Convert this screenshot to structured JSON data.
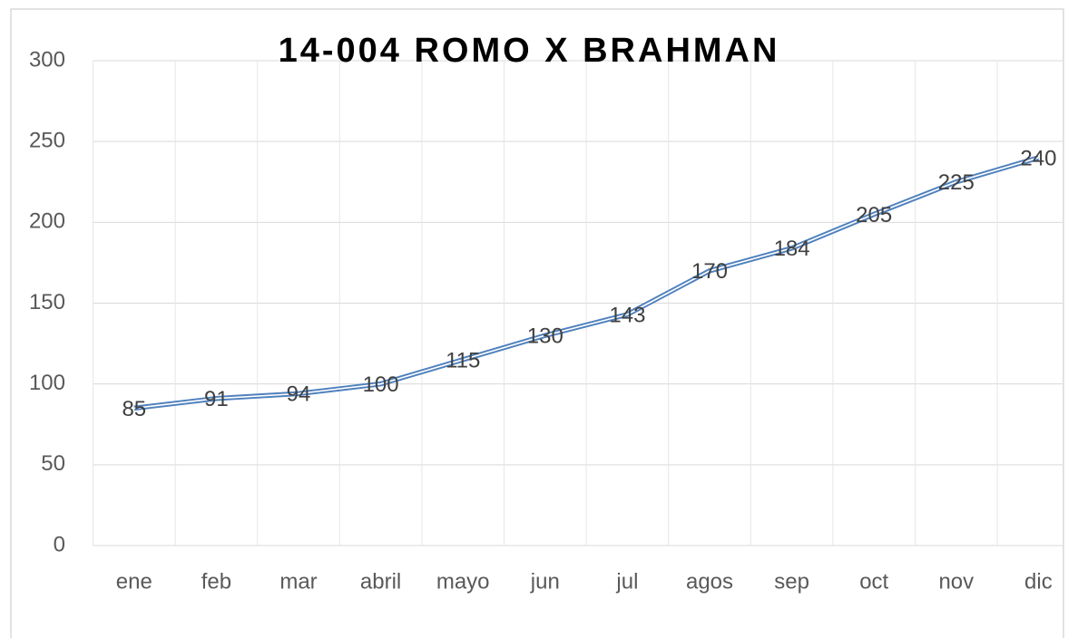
{
  "chart_data": {
    "type": "line",
    "title": "14-004 ROMO X BRAHMAN",
    "categories": [
      "ene",
      "feb",
      "mar",
      "abril",
      "mayo",
      "jun",
      "jul",
      "agos",
      "sep",
      "oct",
      "nov",
      "dic"
    ],
    "values": [
      85,
      91,
      94,
      100,
      115,
      130,
      143,
      170,
      184,
      205,
      225,
      240
    ],
    "color": "#4f81bd",
    "ylim": [
      0,
      300
    ],
    "yticks": [
      0,
      50,
      100,
      150,
      200,
      250,
      300
    ],
    "grid": true
  }
}
